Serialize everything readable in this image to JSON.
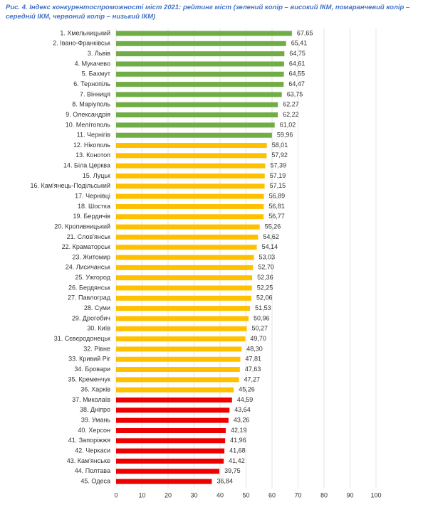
{
  "chart_data": {
    "type": "bar",
    "orientation": "horizontal",
    "title": "Рис.  4. Індекс конкурентоспроможності міст 2021: рейтинг міст  (зелений колір – високий ІКМ, помаранчевий колір – середній ІКМ, червоний колір – низький ІКМ)",
    "categories": [
      "1. Хмельницький",
      "2. Івано-Франківськ",
      "3. Львів",
      "4. Мукачево",
      "5. Бахмут",
      "6. Тернопіль",
      "7. Вінниця",
      "8. Маріуполь",
      "9. Олександрія",
      "10. Мелітополь",
      "11. Чернігів",
      "12. Нікополь",
      "13. Конотоп",
      "14. Біла Церква",
      "15. Луцьк",
      "16. Кам'янець-Подільський",
      "17. Чернівці",
      "18. Шостка",
      "19. Бердичів",
      "20. Кропивницький",
      "21. Слов'янськ",
      "22. Краматорськ",
      "23. Житомир",
      "24. Лисичанськ",
      "25. Ужгород",
      "26. Бердянськ",
      "27. Павлоград",
      "28. Суми",
      "29. Дрогобич",
      "30. Київ",
      "31. Сєвєродонецьк",
      "32. Рівне",
      "33. Кривий Ріг",
      "34. Бровари",
      "35. Кременчук",
      "36. Харків",
      "37. Миколаїв",
      "38. Дніпро",
      "39. Умань",
      "40. Херсон",
      "41. Запоріжжя",
      "42. Черкаси",
      "43. Кам'янське",
      "44. Полтава",
      "45. Одеса"
    ],
    "values": [
      67.65,
      65.41,
      64.75,
      64.61,
      64.55,
      64.47,
      63.75,
      62.27,
      62.22,
      61.02,
      59.96,
      58.01,
      57.92,
      57.39,
      57.19,
      57.15,
      56.89,
      56.81,
      56.77,
      55.26,
      54.62,
      54.14,
      53.03,
      52.7,
      52.36,
      52.25,
      52.06,
      51.53,
      50.96,
      50.27,
      49.7,
      48.3,
      47.81,
      47.63,
      47.27,
      45.26,
      44.59,
      43.64,
      43.26,
      42.19,
      41.96,
      41.68,
      41.42,
      39.75,
      36.84
    ],
    "value_labels": [
      "67,65",
      "65,41",
      "64,75",
      "64,61",
      "64,55",
      "64,47",
      "63,75",
      "62,27",
      "62,22",
      "61,02",
      "59,96",
      "58,01",
      "57,92",
      "57,39",
      "57,19",
      "57,15",
      "56,89",
      "56,81",
      "56,77",
      "55,26",
      "54,62",
      "54,14",
      "53,03",
      "52,70",
      "52,36",
      "52,25",
      "52,06",
      "51,53",
      "50,96",
      "50,27",
      "49,70",
      "48,30",
      "47,81",
      "47,63",
      "47,27",
      "45,26",
      "44,59",
      "43,64",
      "43,26",
      "42,19",
      "41,96",
      "41,68",
      "41,42",
      "39,75",
      "36,84"
    ],
    "colors": [
      "#70ad47",
      "#70ad47",
      "#70ad47",
      "#70ad47",
      "#70ad47",
      "#70ad47",
      "#70ad47",
      "#70ad47",
      "#70ad47",
      "#70ad47",
      "#70ad47",
      "#ffc000",
      "#ffc000",
      "#ffc000",
      "#ffc000",
      "#ffc000",
      "#ffc000",
      "#ffc000",
      "#ffc000",
      "#ffc000",
      "#ffc000",
      "#ffc000",
      "#ffc000",
      "#ffc000",
      "#ffc000",
      "#ffc000",
      "#ffc000",
      "#ffc000",
      "#ffc000",
      "#ffc000",
      "#ffc000",
      "#ffc000",
      "#ffc000",
      "#ffc000",
      "#ffc000",
      "#ffc000",
      "#ee0000",
      "#ee0000",
      "#ee0000",
      "#ee0000",
      "#ee0000",
      "#ee0000",
      "#ee0000",
      "#ee0000",
      "#ee0000"
    ],
    "xlim": [
      0,
      100
    ],
    "xticks": [
      0,
      10,
      20,
      30,
      40,
      50,
      60,
      70,
      80,
      90,
      100
    ],
    "grid": true
  }
}
